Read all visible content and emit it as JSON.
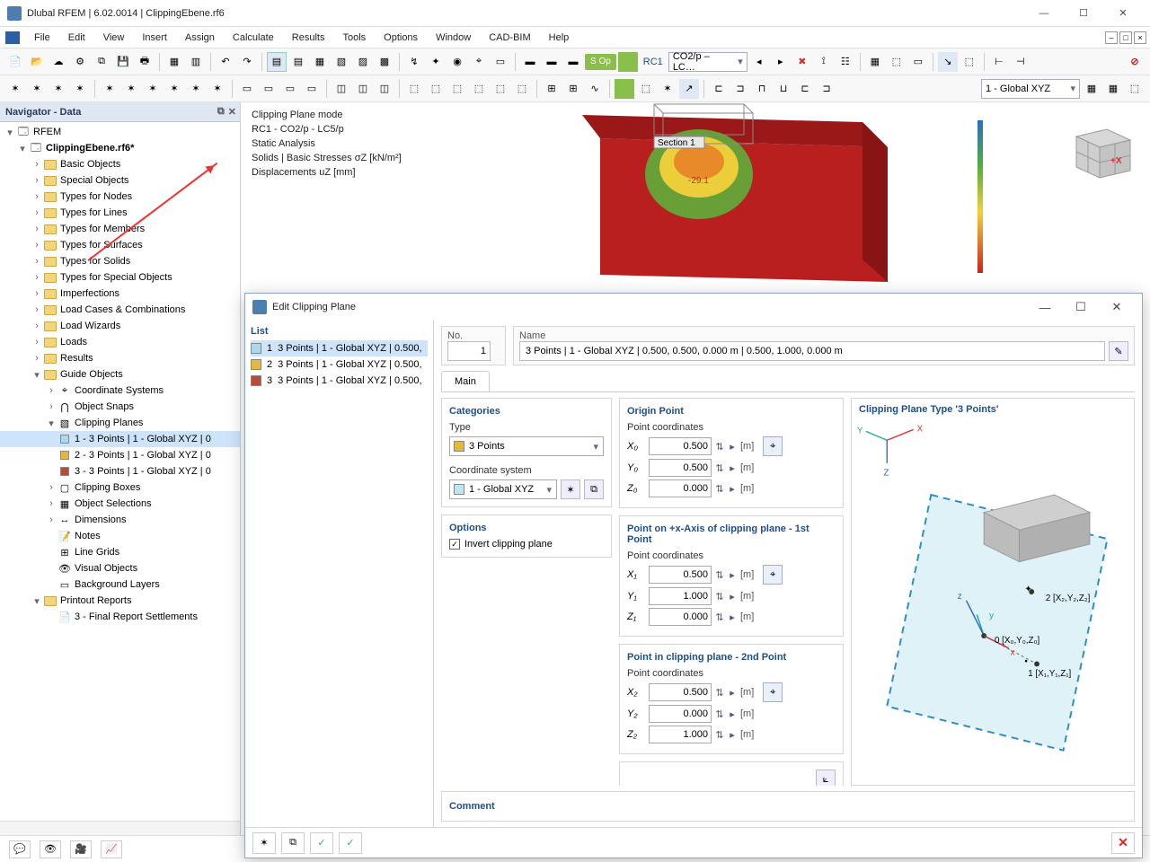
{
  "window": {
    "title": "Dlubal RFEM | 6.02.0014 | ClippingEbene.rf6"
  },
  "menu": [
    "File",
    "Edit",
    "View",
    "Insert",
    "Assign",
    "Calculate",
    "Results",
    "Tools",
    "Options",
    "Window",
    "CAD-BIM",
    "Help"
  ],
  "toolbar1": {
    "tag": "S Op",
    "rc": "RC1",
    "loadcombo": "CO2/p – LC…",
    "globalcombo": "1 - Global XYZ"
  },
  "nav": {
    "title": "Navigator - Data",
    "root": "RFEM",
    "file": "ClippingEbene.rf6*",
    "items": [
      "Basic Objects",
      "Special Objects",
      "Types for Nodes",
      "Types for Lines",
      "Types for Members",
      "Types for Surfaces",
      "Types for Solids",
      "Types for Special Objects",
      "Imperfections",
      "Load Cases & Combinations",
      "Load Wizards",
      "Loads",
      "Results"
    ],
    "guide": "Guide Objects",
    "guideItems": [
      "Coordinate Systems",
      "Object Snaps"
    ],
    "clip": "Clipping Planes",
    "clipItems": [
      {
        "n": "1 - 3 Points | 1 - Global XYZ | 0",
        "c": "#a9d8ef"
      },
      {
        "n": "2 - 3 Points | 1 - Global XYZ | 0",
        "c": "#e8b63e"
      },
      {
        "n": "3 - 3 Points | 1 - Global XYZ | 0",
        "c": "#b84a3a"
      }
    ],
    "after": [
      "Clipping Boxes",
      "Object Selections",
      "Dimensions",
      "Notes",
      "Line Grids",
      "Visual Objects",
      "Background Layers"
    ],
    "printout": "Printout Reports",
    "report": "3 - Final Report Settlements"
  },
  "view": {
    "l1": "Clipping Plane mode",
    "l2": "RC1 - CO2/p - LC5/p",
    "l3": "Static Analysis",
    "l4": "Solids | Basic Stresses σZ [kN/m²]",
    "l5": "Displacements uZ [mm]"
  },
  "dialog": {
    "title": "Edit Clipping Plane",
    "listHeader": "List",
    "list": [
      {
        "i": "1",
        "t": "3 Points | 1 - Global XYZ | 0.500,",
        "c": "#a9d8ef"
      },
      {
        "i": "2",
        "t": "3 Points | 1 - Global XYZ | 0.500,",
        "c": "#e8b63e"
      },
      {
        "i": "3",
        "t": "3 Points | 1 - Global XYZ | 0.500,",
        "c": "#b84a3a"
      }
    ],
    "noLabel": "No.",
    "no": "1",
    "nameLabel": "Name",
    "name": "3 Points | 1 - Global XYZ | 0.500, 0.500, 0.000 m | 0.500, 1.000, 0.000 m",
    "tab": "Main",
    "cat": {
      "h": "Categories",
      "typeL": "Type",
      "type": "3 Points",
      "csL": "Coordinate system",
      "cs": "1 - Global XYZ"
    },
    "opt": {
      "h": "Options",
      "inv": "Invert clipping plane"
    },
    "origin": {
      "h": "Origin Point",
      "sub": "Point coordinates",
      "x": "X₀",
      "y": "Y₀",
      "z": "Z₀",
      "xv": "0.500",
      "yv": "0.500",
      "zv": "0.000"
    },
    "p1": {
      "h": "Point on +x-Axis of clipping plane - 1st Point",
      "sub": "Point coordinates",
      "x": "X₁",
      "y": "Y₁",
      "z": "Z₁",
      "xv": "0.500",
      "yv": "1.000",
      "zv": "0.000"
    },
    "p2": {
      "h": "Point in clipping plane - 2nd Point",
      "sub": "Point coordinates",
      "x": "X₂",
      "y": "Y₂",
      "z": "Z₂",
      "xv": "0.500",
      "yv": "0.000",
      "zv": "1.000"
    },
    "unit": "[m]",
    "diag": {
      "h": "Clipping Plane Type '3 Points'",
      "p0": "0 [X₀,Y₀,Z₀]",
      "p1": "1 [X₁,Y₁,Z₁]",
      "p2": "2 [X₂,Y₂,Z₂]"
    },
    "comment": "Comment"
  },
  "colors": {
    "solid": "#b91f1f",
    "solidTop": "#9b1818",
    "stress1": "#f2d13a",
    "stress2": "#5fae3a",
    "cube": "#d7d7d7",
    "cubeLine": "#9a9a9a",
    "plane": "#bfe5f2",
    "planeEdge": "#2a8fc4",
    "block": "#bcbcbc"
  }
}
